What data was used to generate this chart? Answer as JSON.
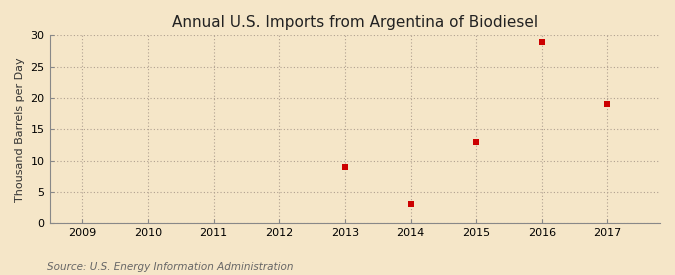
{
  "title": "Annual U.S. Imports from Argentina of Biodiesel",
  "ylabel": "Thousand Barrels per Day",
  "source": "Source: U.S. Energy Information Administration",
  "background_color": "#f5e6c8",
  "plot_bg_color": "#f5e6c8",
  "data_years": [
    2013,
    2014,
    2015,
    2016,
    2017
  ],
  "data_values": [
    9,
    3,
    13,
    29,
    19
  ],
  "xlim": [
    2008.5,
    2017.8
  ],
  "ylim": [
    0,
    30
  ],
  "yticks": [
    0,
    5,
    10,
    15,
    20,
    25,
    30
  ],
  "xticks": [
    2009,
    2010,
    2011,
    2012,
    2013,
    2014,
    2015,
    2016,
    2017
  ],
  "marker_color": "#cc0000",
  "marker": "s",
  "marker_size": 4,
  "grid_color": "#b0a090",
  "title_fontsize": 11,
  "label_fontsize": 8,
  "tick_fontsize": 8,
  "source_fontsize": 7.5
}
